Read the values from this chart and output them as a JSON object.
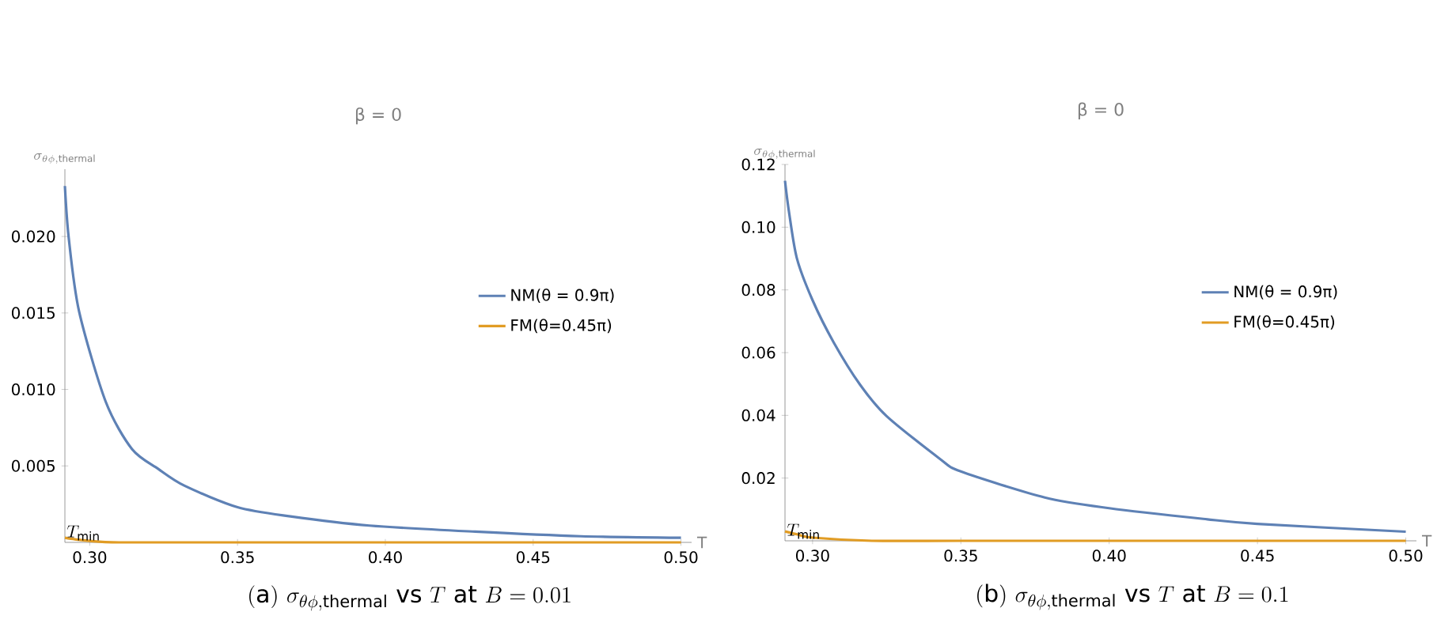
{
  "chart_data": [
    {
      "type": "line",
      "title": "β = 0",
      "xlabel": "T",
      "ylabel": "\\sigma_{\\theta\\phi,\\mathrm{thermal}}",
      "annotations": [
        {
          "text": "T_{\\mathrm{min}}",
          "x": 0.2916,
          "y": 0
        },
        "\\mathrm{(a)}\\ \\sigma_{\\theta\\phi,\\mathrm{thermal}}\\ \\mathrm{vs}\\ T\\ \\mathrm{at}\\ B=0.01"
      ],
      "xlim": [
        0.2916,
        0.5036
      ],
      "ylim": [
        0,
        0.0244
      ],
      "xticks": [
        {
          "value": 0.3,
          "label": "0.30"
        },
        {
          "value": 0.35,
          "label": "0.35"
        },
        {
          "value": 0.4,
          "label": "0.40"
        },
        {
          "value": 0.45,
          "label": "0.45"
        },
        {
          "value": 0.5,
          "label": "0.50"
        }
      ],
      "yticks": [
        0.005,
        {
          "value": 0.01,
          "label": "0.010"
        },
        0.015,
        {
          "value": 0.02,
          "label": "0.020"
        }
      ],
      "legend": "right",
      "grid": false,
      "marker": "none",
      "line_style": "solid",
      "series": [
        {
          "name": "NM(θ = 0.9π)",
          "color": "#5e81b5",
          "x": [
            0.2916,
            0.2929,
            0.2964,
            0.3054,
            0.3143,
            0.3232,
            0.3321,
            0.35,
            0.3679,
            0.3946,
            0.4304,
            0.4661,
            0.5
          ],
          "values": [
            0.0233,
            0.0199,
            0.0151,
            0.0092,
            0.0061,
            0.0048,
            0.0037,
            0.0023,
            0.0017,
            0.0011,
            0.0007,
            0.0004,
            0.0003
          ]
        },
        {
          "name": "FM(θ=0.45π)",
          "color": "#e19c24",
          "x": [
            0.2916,
            0.295,
            0.3,
            0.31,
            0.35,
            0.5
          ],
          "values": [
            0.0003,
            0.0002,
            0.0001,
            0,
            0,
            0
          ]
        }
      ]
    },
    {
      "type": "line",
      "title": "β = 0",
      "xlabel": "T",
      "ylabel": "\\sigma_{\\theta\\phi,\\mathrm{thermal}}",
      "annotations": [
        {
          "text": "T_{\\mathrm{min}}",
          "x": 0.2907,
          "y": 0
        },
        "\\mathrm{(b)}\\ \\sigma_{\\theta\\phi,\\mathrm{thermal}}\\ \\mathrm{vs}\\ T\\ \\mathrm{at}\\ B=0.1"
      ],
      "xlim": [
        0.2907,
        0.5036
      ],
      "ylim": [
        0,
        0.12
      ],
      "xticks": [
        {
          "value": 0.3,
          "label": "0.30"
        },
        {
          "value": 0.35,
          "label": "0.35"
        },
        {
          "value": 0.4,
          "label": "0.40"
        },
        {
          "value": 0.45,
          "label": "0.45"
        },
        {
          "value": 0.5,
          "label": "0.50"
        }
      ],
      "yticks": [
        0.02,
        0.04,
        0.06,
        0.08,
        {
          "value": 0.1,
          "label": "0.10"
        },
        0.12
      ],
      "legend": "right",
      "grid": false,
      "marker": "none",
      "line_style": "solid",
      "series": [
        {
          "name": "NM(θ = 0.9π)",
          "color": "#5e81b5",
          "x": [
            0.2907,
            0.292,
            0.2947,
            0.3,
            0.3071,
            0.316,
            0.3249,
            0.3427,
            0.35,
            0.3783,
            0.4,
            0.4317,
            0.45,
            0.5
          ],
          "values": [
            0.1148,
            0.1052,
            0.0901,
            0.0767,
            0.0633,
            0.0498,
            0.0398,
            0.0263,
            0.0221,
            0.0138,
            0.0104,
            0.007,
            0.0054,
            0.0029
          ]
        },
        {
          "name": "FM(θ=0.45π)",
          "color": "#e19c24",
          "x": [
            0.2907,
            0.295,
            0.3,
            0.32,
            0.35,
            0.4,
            0.5
          ],
          "values": [
            0.003,
            0.002,
            0.001,
            0,
            0,
            0,
            0
          ]
        }
      ]
    }
  ]
}
